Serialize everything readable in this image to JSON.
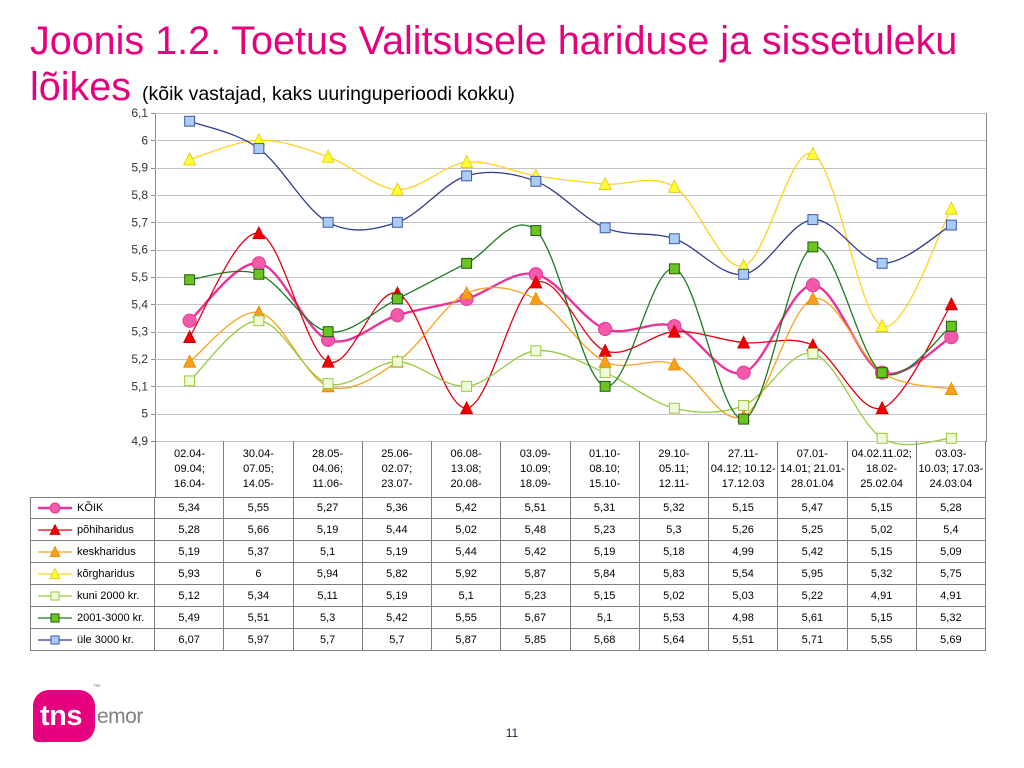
{
  "title": {
    "line1": "Joonis 1.2. Toetus Valitsusele hariduse ja sissetuleku",
    "line2": "lõikes",
    "subtitle": "(kõik vastajad, kaks uuringuperioodi kokku)",
    "color": "#E5007E"
  },
  "chart_data": {
    "type": "line",
    "smoothed": true,
    "categories": [
      "02.04-\n09.04;\n16.04-",
      "30.04-\n07.05;\n14.05-",
      "28.05-\n04.06;\n11.06-",
      "25.06-\n02.07;\n23.07-",
      "06.08-\n13.08;\n20.08-",
      "03.09-\n10.09;\n18.09-",
      "01.10-\n08.10;\n15.10-",
      "29.10-\n05.11;\n12.11-",
      "27.11-\n04.12; 10.12-\n17.12.03",
      "07.01-\n14.01; 21.01-\n28.01.04",
      "04.02.11.02;\n18.02-\n25.02.04",
      "03.03-\n10.03; 17.03-\n24.03.04"
    ],
    "ylim": [
      4.9,
      6.1
    ],
    "yticks": [
      6.1,
      6,
      5.9,
      5.8,
      5.7,
      5.6,
      5.5,
      5.4,
      5.3,
      5.2,
      5.1,
      5,
      4.9
    ],
    "grid": true,
    "legend": "bottom",
    "series": [
      {
        "name": "KÕIK",
        "marker": "circle",
        "color": "#E8359A",
        "marker_fill": "#F35AAA",
        "marker_stroke": "#E8359A",
        "values": [
          5.34,
          5.55,
          5.27,
          5.36,
          5.42,
          5.51,
          5.31,
          5.32,
          5.15,
          5.47,
          5.15,
          5.28
        ]
      },
      {
        "name": "põhiharidus",
        "marker": "triangle",
        "color": "#E3000F",
        "marker_fill": "#F00000",
        "marker_stroke": "#C80000",
        "values": [
          5.28,
          5.66,
          5.19,
          5.44,
          5.02,
          5.48,
          5.23,
          5.3,
          5.26,
          5.25,
          5.02,
          5.4
        ]
      },
      {
        "name": "keskharidus",
        "marker": "triangle",
        "color": "#F7A11A",
        "marker_fill": "#F9A01B",
        "marker_stroke": "#E08600",
        "values": [
          5.19,
          5.37,
          5.1,
          5.19,
          5.44,
          5.42,
          5.19,
          5.18,
          4.99,
          5.42,
          5.15,
          5.09
        ]
      },
      {
        "name": "kõrgharidus",
        "marker": "triangle",
        "color": "#FFD21F",
        "marker_fill": "#FFFF33",
        "marker_stroke": "#E5C400",
        "values": [
          5.93,
          6,
          5.94,
          5.82,
          5.92,
          5.87,
          5.84,
          5.83,
          5.54,
          5.95,
          5.32,
          5.75
        ]
      },
      {
        "name": "kuni 2000 kr.",
        "marker": "square",
        "color": "#97C93D",
        "marker_fill": "#EFFBDA",
        "marker_stroke": "#97C93D",
        "values": [
          5.12,
          5.34,
          5.11,
          5.19,
          5.1,
          5.23,
          5.15,
          5.02,
          5.03,
          5.22,
          4.91,
          4.91
        ]
      },
      {
        "name": "2001-3000 kr.",
        "marker": "square",
        "color": "#1A7A1A",
        "marker_fill": "#6BC41F",
        "marker_stroke": "#1E5C0C",
        "values": [
          5.49,
          5.51,
          5.3,
          5.42,
          5.55,
          5.67,
          5.1,
          5.53,
          4.98,
          5.61,
          5.15,
          5.32
        ]
      },
      {
        "name": "üle 3000 kr.",
        "marker": "square",
        "color": "#2F3990",
        "marker_fill": "#A9CBF4",
        "marker_stroke": "#3B5BA9",
        "values": [
          6.07,
          5.97,
          5.7,
          5.7,
          5.87,
          5.85,
          5.68,
          5.64,
          5.51,
          5.71,
          5.55,
          5.69
        ]
      }
    ]
  },
  "page_number": "11",
  "logo": {
    "mark": "tns",
    "word": "emor",
    "trademark": "™",
    "color": "#E5007E",
    "word_color": "#808080"
  }
}
